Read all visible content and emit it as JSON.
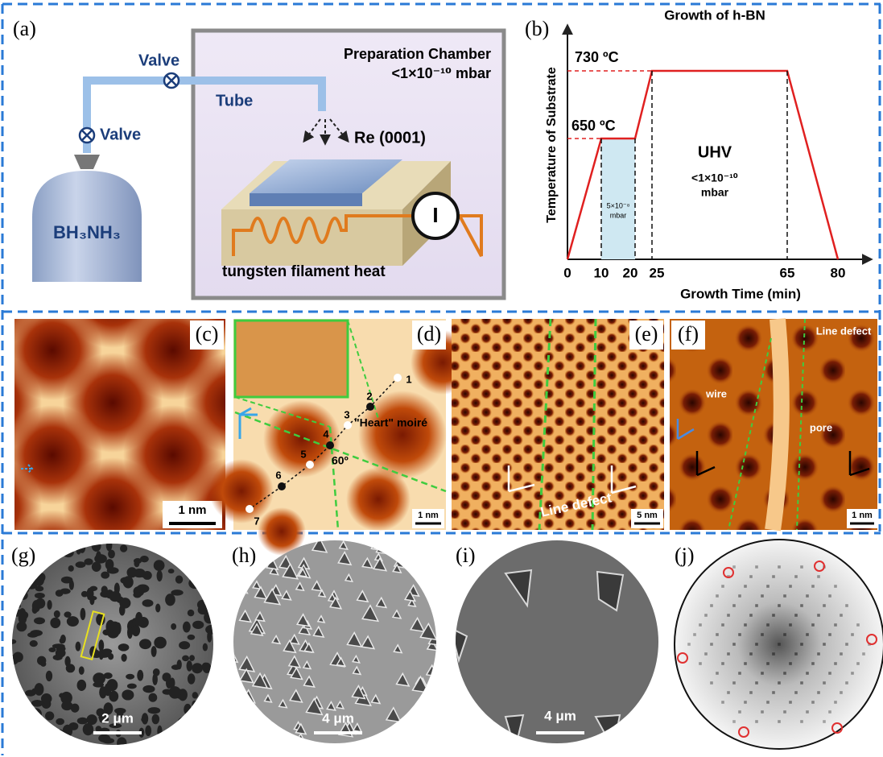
{
  "panel_a": {
    "label": "(a)",
    "valve_top": "Valve",
    "valve_left": "Valve",
    "tube": "Tube",
    "chamber_title": "Preparation Chamber",
    "chamber_pressure": "<1×10⁻¹⁰ mbar",
    "substrate": "Re (0001)",
    "precursor": "BH₃NH₃",
    "heater": "tungsten filament heat",
    "current_symbol": "I"
  },
  "panel_b": {
    "label": "(b)",
    "title": "Growth of h-BN",
    "y_axis_label": "Temperature of Substrate",
    "x_axis_label": "Growth Time (min)",
    "temp_high": "730 ºC",
    "temp_low": "650 ºC",
    "uhv": "UHV",
    "uhv_pressure": "<1×10⁻¹⁰",
    "uhv_unit": "mbar",
    "dose_pressure": "5×10⁻⁸",
    "dose_unit": "mbar",
    "xticks": [
      0,
      10,
      20,
      25,
      65,
      80
    ]
  },
  "panel_c": {
    "label": "(c)",
    "scale": "1 nm"
  },
  "panel_d": {
    "label": "(d)",
    "points": [
      "1",
      "2",
      "3",
      "4",
      "5",
      "6",
      "7"
    ],
    "moire": "\"Heart\" moiré",
    "angle": "60º",
    "scale": "1 nm"
  },
  "panel_e": {
    "label": "(e)",
    "defect": "Line defect",
    "scale": "5 nm"
  },
  "panel_f": {
    "label": "(f)",
    "defect": "Line defect",
    "wire": "wire",
    "pore": "pore",
    "scale": "1 nm"
  },
  "panel_g": {
    "label": "(g)",
    "scale": "2 μm"
  },
  "panel_h": {
    "label": "(h)",
    "scale": "4 μm"
  },
  "panel_i": {
    "label": "(i)",
    "scale": "4 μm"
  },
  "panel_j": {
    "label": "(j)"
  }
}
